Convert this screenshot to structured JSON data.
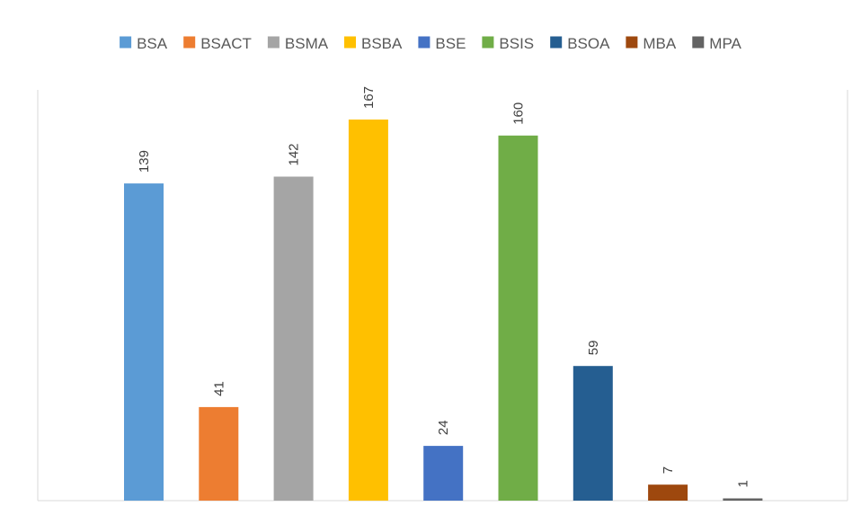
{
  "chart_data": {
    "type": "bar",
    "categories": [
      "BSA",
      "BSACT",
      "BSMA",
      "BSBA",
      "BSE",
      "BSIS",
      "BSOA",
      "MBA",
      "MPA"
    ],
    "values": [
      139,
      41,
      142,
      167,
      24,
      160,
      59,
      7,
      1
    ],
    "data_labels": [
      "139",
      "41",
      "142",
      "167",
      "24",
      "160",
      "59",
      "7",
      "1"
    ],
    "colors": [
      "#5B9BD5",
      "#ED7D31",
      "#A5A5A5",
      "#FFC000",
      "#4472C4",
      "#70AD47",
      "#255E91",
      "#9E480E",
      "#636363"
    ],
    "title": "",
    "xlabel": "",
    "ylabel": "",
    "ylim": [
      0,
      180
    ],
    "grid": false,
    "legend_position": "top",
    "data_label_orientation": "vertical"
  }
}
